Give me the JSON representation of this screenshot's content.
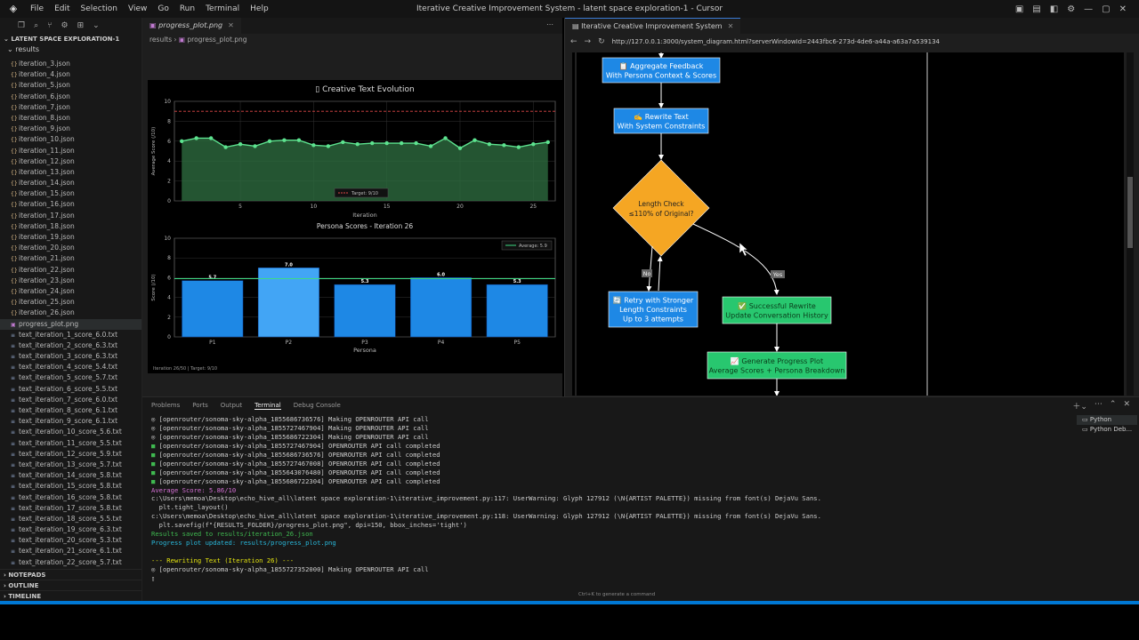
{
  "titlebar": {
    "title": "Iterative Creative Improvement System - latent space exploration-1 - Cursor",
    "menu": [
      "File",
      "Edit",
      "Selection",
      "View",
      "Go",
      "Run",
      "Terminal",
      "Help"
    ]
  },
  "sidebar": {
    "section": "LATENT SPACE EXPLORATION-1",
    "folder": "results",
    "files": [
      {
        "name": "iteration_3.json",
        "kind": "json"
      },
      {
        "name": "iteration_4.json",
        "kind": "json"
      },
      {
        "name": "iteration_5.json",
        "kind": "json"
      },
      {
        "name": "iteration_6.json",
        "kind": "json"
      },
      {
        "name": "iteration_7.json",
        "kind": "json"
      },
      {
        "name": "iteration_8.json",
        "kind": "json"
      },
      {
        "name": "iteration_9.json",
        "kind": "json"
      },
      {
        "name": "iteration_10.json",
        "kind": "json"
      },
      {
        "name": "iteration_11.json",
        "kind": "json"
      },
      {
        "name": "iteration_12.json",
        "kind": "json"
      },
      {
        "name": "iteration_13.json",
        "kind": "json"
      },
      {
        "name": "iteration_14.json",
        "kind": "json"
      },
      {
        "name": "iteration_15.json",
        "kind": "json"
      },
      {
        "name": "iteration_16.json",
        "kind": "json"
      },
      {
        "name": "iteration_17.json",
        "kind": "json"
      },
      {
        "name": "iteration_18.json",
        "kind": "json"
      },
      {
        "name": "iteration_19.json",
        "kind": "json"
      },
      {
        "name": "iteration_20.json",
        "kind": "json"
      },
      {
        "name": "iteration_21.json",
        "kind": "json"
      },
      {
        "name": "iteration_22.json",
        "kind": "json"
      },
      {
        "name": "iteration_23.json",
        "kind": "json"
      },
      {
        "name": "iteration_24.json",
        "kind": "json"
      },
      {
        "name": "iteration_25.json",
        "kind": "json"
      },
      {
        "name": "iteration_26.json",
        "kind": "json"
      },
      {
        "name": "progress_plot.png",
        "kind": "png",
        "selected": true
      },
      {
        "name": "text_iteration_1_score_6.0.txt",
        "kind": "txt"
      },
      {
        "name": "text_iteration_2_score_6.3.txt",
        "kind": "txt"
      },
      {
        "name": "text_iteration_3_score_6.3.txt",
        "kind": "txt"
      },
      {
        "name": "text_iteration_4_score_5.4.txt",
        "kind": "txt"
      },
      {
        "name": "text_iteration_5_score_5.7.txt",
        "kind": "txt"
      },
      {
        "name": "text_iteration_6_score_5.5.txt",
        "kind": "txt"
      },
      {
        "name": "text_iteration_7_score_6.0.txt",
        "kind": "txt"
      },
      {
        "name": "text_iteration_8_score_6.1.txt",
        "kind": "txt"
      },
      {
        "name": "text_iteration_9_score_6.1.txt",
        "kind": "txt"
      },
      {
        "name": "text_iteration_10_score_5.6.txt",
        "kind": "txt"
      },
      {
        "name": "text_iteration_11_score_5.5.txt",
        "kind": "txt"
      },
      {
        "name": "text_iteration_12_score_5.9.txt",
        "kind": "txt"
      },
      {
        "name": "text_iteration_13_score_5.7.txt",
        "kind": "txt"
      },
      {
        "name": "text_iteration_14_score_5.8.txt",
        "kind": "txt"
      },
      {
        "name": "text_iteration_15_score_5.8.txt",
        "kind": "txt"
      },
      {
        "name": "text_iteration_16_score_5.8.txt",
        "kind": "txt"
      },
      {
        "name": "text_iteration_17_score_5.8.txt",
        "kind": "txt"
      },
      {
        "name": "text_iteration_18_score_5.5.txt",
        "kind": "txt"
      },
      {
        "name": "text_iteration_19_score_6.3.txt",
        "kind": "txt"
      },
      {
        "name": "text_iteration_20_score_5.3.txt",
        "kind": "txt"
      },
      {
        "name": "text_iteration_21_score_6.1.txt",
        "kind": "txt"
      },
      {
        "name": "text_iteration_22_score_5.7.txt",
        "kind": "txt"
      }
    ],
    "bottom": [
      "NOTEPADS",
      "OUTLINE",
      "TIMELINE"
    ]
  },
  "editor": {
    "tab": "progress_plot.png",
    "breadcrumb": [
      "results",
      "progress_plot.png"
    ]
  },
  "browser": {
    "tab": "Iterative Creative Improvement System",
    "url": "http://127.0.0.1:3000/system_diagram.html?serverWindowId=2443fbc6-273d-4de6-a44a-a63a7a539134",
    "diagram": {
      "aggregate": [
        "📋 Aggregate Feedback",
        "With Persona Context & Scores"
      ],
      "rewrite": [
        "✍️ Rewrite Text",
        "With System Constraints"
      ],
      "check": [
        "Length Check",
        "≤110% of Original?"
      ],
      "no": "No",
      "yes": "Yes",
      "retry": [
        "🔄 Retry with Stronger",
        "Length Constraints",
        "Up to 3 attempts"
      ],
      "success": [
        "✅ Successful Rewrite",
        "Update Conversation History"
      ],
      "progress": [
        "📈 Generate Progress Plot",
        "Average Scores + Persona Breakdown"
      ],
      "colors": {
        "blue": "#1e88e5",
        "orange": "#f5a623",
        "green": "#28c76f"
      }
    }
  },
  "chart_data": [
    {
      "type": "line",
      "title": "▯ Creative Text Evolution",
      "xlabel": "Iteration",
      "ylabel": "Average Score (/10)",
      "x": [
        1,
        2,
        3,
        4,
        5,
        6,
        7,
        8,
        9,
        10,
        11,
        12,
        13,
        14,
        15,
        16,
        17,
        18,
        19,
        20,
        21,
        22,
        23,
        24,
        25,
        26
      ],
      "values": [
        6.0,
        6.3,
        6.3,
        5.4,
        5.7,
        5.5,
        6.0,
        6.1,
        6.1,
        5.6,
        5.5,
        5.9,
        5.7,
        5.8,
        5.8,
        5.8,
        5.8,
        5.5,
        6.3,
        5.3,
        6.1,
        5.7,
        5.6,
        5.4,
        5.7,
        5.9
      ],
      "xticks": [
        5,
        10,
        15,
        20,
        25
      ],
      "yticks": [
        0,
        2,
        4,
        6,
        8,
        10
      ],
      "ylim": [
        0,
        10
      ],
      "xlim": [
        0.5,
        26.5
      ],
      "target": 9,
      "legend": "Target: 9/10",
      "colors": {
        "line": "#5de38f",
        "fill": "#2d6a3e",
        "target": "#e04848"
      }
    },
    {
      "type": "bar",
      "title": "Persona Scores - Iteration 26",
      "xlabel": "Persona",
      "ylabel": "Score (/10)",
      "categories": [
        "P1",
        "P2",
        "P3",
        "P4",
        "P5"
      ],
      "values": [
        5.7,
        7.0,
        5.3,
        6.0,
        5.3
      ],
      "labels": [
        "5.7",
        "7.0",
        "5.3",
        "6.0",
        "5.3"
      ],
      "yticks": [
        0,
        2,
        4,
        6,
        8,
        10
      ],
      "ylim": [
        0,
        10
      ],
      "average": 5.9,
      "legend": "Average: 5.9",
      "footer": "Iteration 26/50 | Target: 9/10",
      "colors": {
        "bar": "#1e88e5",
        "highlight": "#42a5f5",
        "average": "#3ddc84"
      }
    }
  ],
  "panel": {
    "tabs": [
      "Problems",
      "Ports",
      "Output",
      "Terminal",
      "Debug Console"
    ],
    "active": "Terminal",
    "lines": [
      {
        "t": "◎ [openrouter/sonoma-sky-alpha_1855686736576] Making OPENROUTER API call",
        "c": "spin"
      },
      {
        "t": "◎ [openrouter/sonoma-sky-alpha_1855727467904] Making OPENROUTER API call",
        "c": "spin"
      },
      {
        "t": "◎ [openrouter/sonoma-sky-alpha_1855686722304] Making OPENROUTER API call",
        "c": "spin"
      },
      {
        "t": "✅ [openrouter/sonoma-sky-alpha_1855727467904] OPENROUTER API call completed",
        "c": ""
      },
      {
        "t": "✅ [openrouter/sonoma-sky-alpha_1855686736576] OPENROUTER API call completed",
        "c": ""
      },
      {
        "t": "✅ [openrouter/sonoma-sky-alpha_1855727467008] OPENROUTER API call completed",
        "c": ""
      },
      {
        "t": "✅ [openrouter/sonoma-sky-alpha_1855643076480] OPENROUTER API call completed",
        "c": ""
      },
      {
        "t": "✅ [openrouter/sonoma-sky-alpha_1855686722304] OPENROUTER API call completed",
        "c": ""
      },
      {
        "t": "Average Score: 5.86/10",
        "c": "magenta"
      },
      {
        "t": "c:\\Users\\memoa\\Desktop\\echo_hive_all\\latent space exploration-1\\iterative_improvement.py:117: UserWarning: Glyph 127912 (\\N{ARTIST PALETTE}) missing from font(s) DejaVu Sans.",
        "c": ""
      },
      {
        "t": "  plt.tight_layout()",
        "c": ""
      },
      {
        "t": "c:\\Users\\memoa\\Desktop\\echo_hive_all\\latent space exploration-1\\iterative_improvement.py:118: UserWarning: Glyph 127912 (\\N{ARTIST PALETTE}) missing from font(s) DejaVu Sans.",
        "c": ""
      },
      {
        "t": "  plt.savefig(f\"{RESULTS_FOLDER}/progress_plot.png\", dpi=150, bbox_inches='tight')",
        "c": ""
      },
      {
        "t": "Results saved to results/iteration_26.json",
        "c": "ok"
      },
      {
        "t": "Progress plot updated: results/progress_plot.png",
        "c": "cyan"
      },
      {
        "t": "",
        "c": ""
      },
      {
        "t": "--- Rewriting Text (Iteration 26) ---",
        "c": "yellow"
      },
      {
        "t": "◎ [openrouter/sonoma-sky-alpha_1855727352000] Making OPENROUTER API call",
        "c": "spin"
      },
      {
        "t": "▯",
        "c": ""
      }
    ],
    "terminals": [
      "Python",
      "Python Deb..."
    ],
    "hint": "Ctrl+K to generate a command"
  }
}
